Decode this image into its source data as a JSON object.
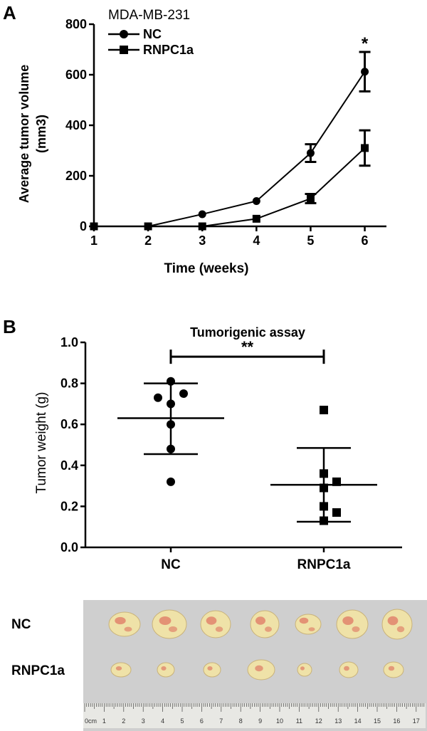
{
  "panel_a_label": "A",
  "panel_b_label": "B",
  "photo": {
    "row_labels": [
      "NC",
      "RNPC1a"
    ],
    "ruler_ticks": [
      "0cm",
      "1",
      "2",
      "3",
      "4",
      "5",
      "6",
      "7",
      "8",
      "9",
      "10",
      "11",
      "12",
      "13",
      "14",
      "15",
      "16",
      "17"
    ],
    "colors": {
      "background": "#cfcfcf",
      "tumor": "#efe2a8",
      "vessel": "#d8504a"
    }
  },
  "chart_data": [
    {
      "type": "line",
      "title": "",
      "legend_title": "MDA-MB-231",
      "legend_position": "top-left",
      "xlabel": "Time (weeks)",
      "ylabel": [
        "Average tumor volume",
        "(mm3)"
      ],
      "x": [
        1,
        2,
        3,
        4,
        5,
        6
      ],
      "xticks": [
        "1",
        "2",
        "3",
        "4",
        "5",
        "6"
      ],
      "yticks": [
        "0",
        "200",
        "400",
        "600",
        "800"
      ],
      "xlim": [
        1,
        6.4
      ],
      "ylim": [
        0,
        800
      ],
      "grid": false,
      "series": [
        {
          "name": "NC",
          "marker": "circle",
          "values": [
            0,
            0,
            48,
            100,
            290,
            612
          ],
          "errors": [
            0,
            0,
            0,
            0,
            35,
            78
          ]
        },
        {
          "name": "RNPC1a",
          "marker": "square",
          "values": [
            0,
            0,
            0,
            30,
            110,
            310
          ],
          "errors": [
            0,
            0,
            0,
            0,
            18,
            70
          ]
        }
      ],
      "annotations": [
        {
          "x": 6,
          "text": "*"
        }
      ]
    },
    {
      "type": "scatter",
      "title": "Tumorigenic assay",
      "xlabel": "",
      "ylabel": "Tumor weight (g)",
      "categories": [
        "NC",
        "RNPC1a"
      ],
      "yticks": [
        "0.0",
        "0.2",
        "0.4",
        "0.6",
        "0.8",
        "1.0"
      ],
      "ylim": [
        0,
        1.0
      ],
      "grid": false,
      "series": [
        {
          "name": "NC",
          "marker": "circle",
          "points": [
            0.32,
            0.48,
            0.6,
            0.7,
            0.73,
            0.75,
            0.81
          ],
          "mean": 0.63,
          "sd_low": 0.455,
          "sd_high": 0.8
        },
        {
          "name": "RNPC1a",
          "marker": "square",
          "points": [
            0.13,
            0.17,
            0.2,
            0.29,
            0.32,
            0.36,
            0.67
          ],
          "mean": 0.305,
          "sd_low": 0.125,
          "sd_high": 0.485
        }
      ],
      "significance": {
        "text": "**",
        "between": [
          "NC",
          "RNPC1a"
        ],
        "y": 0.93
      }
    }
  ]
}
